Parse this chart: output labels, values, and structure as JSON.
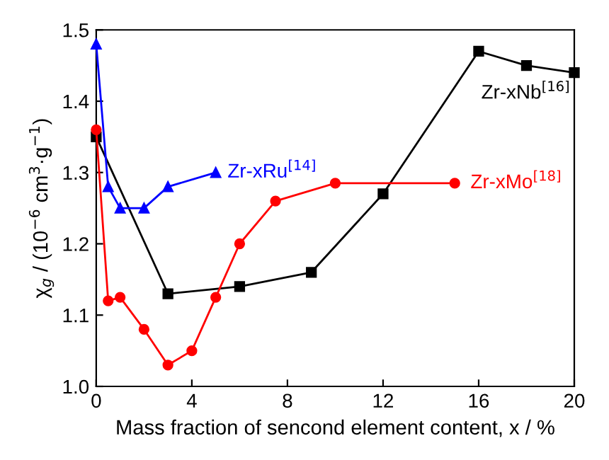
{
  "chart_data": {
    "type": "line",
    "xlabel": "Mass fraction of sencond element content, x / %",
    "ylabel": "χ$_{g}$ / (10$^{−6}$ cm$^{3}$·g$^{−1}$)",
    "xlim": [
      0,
      20
    ],
    "xticks": [
      0,
      4,
      8,
      12,
      16,
      20
    ],
    "ylim": [
      1.0,
      1.5
    ],
    "yticks": [
      {
        "value": 1.0,
        "label": "1.0"
      },
      1.1,
      1.2,
      1.3,
      1.4,
      1.5
    ],
    "grid": false,
    "legend": false,
    "line_style": "solid",
    "series": [
      {
        "name": "Zr-xNb$^{[16]}$",
        "color": "#000000",
        "marker": "square",
        "x": [
          0,
          3,
          6,
          9,
          12,
          16,
          18,
          20
        ],
        "values": [
          1.35,
          1.13,
          1.14,
          1.16,
          1.27,
          1.47,
          1.45,
          1.44
        ]
      },
      {
        "name": "Zr-xRu$^{[14]}$",
        "color": "#0000ff",
        "marker": "triangle",
        "x": [
          0,
          0.5,
          1,
          2,
          3,
          5
        ],
        "values": [
          1.48,
          1.28,
          1.25,
          1.25,
          1.28,
          1.3
        ]
      },
      {
        "name": "Zr-xMo$^{[18]}$",
        "color": "#ff0000",
        "marker": "circle",
        "x": [
          0,
          0.5,
          1,
          2,
          3,
          4,
          5,
          6,
          7.5,
          10,
          15
        ],
        "values": [
          1.36,
          1.12,
          1.125,
          1.08,
          1.03,
          1.05,
          1.125,
          1.2,
          1.26,
          1.285,
          1.285
        ]
      }
    ]
  }
}
